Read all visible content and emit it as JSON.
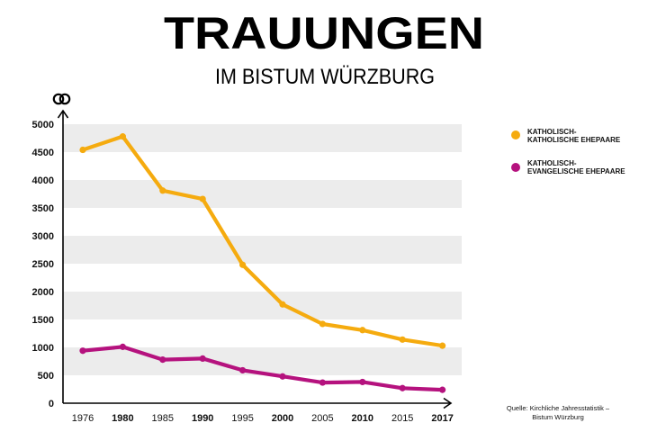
{
  "chart_data": {
    "type": "line",
    "title": "TRAUUNGEN",
    "subtitle": "IM BISTUM WÜRZBURG",
    "x": [
      "1976",
      "1980",
      "1985",
      "1990",
      "1995",
      "2000",
      "2005",
      "2010",
      "2015",
      "2017"
    ],
    "x_bold": [
      "1980",
      "1990",
      "2000",
      "2010",
      "2017"
    ],
    "y_ticks": [
      "0",
      "500",
      "1000",
      "1500",
      "2000",
      "2500",
      "3000",
      "3500",
      "4000",
      "4500",
      "5000"
    ],
    "ylim": [
      0,
      5000
    ],
    "series": [
      {
        "name_line1": "KATHOLISCH-",
        "name_line2": "KATHOLISCHE EHEPAARE",
        "color": "#f5ab0f",
        "values": [
          4540,
          4780,
          3810,
          3660,
          2480,
          1770,
          1420,
          1310,
          1140,
          1030
        ]
      },
      {
        "name_line1": "KATHOLISCH-",
        "name_line2": "EVANGELISCHE EHEPAARE",
        "color": "#b5127e",
        "values": [
          940,
          1010,
          780,
          800,
          590,
          480,
          370,
          380,
          270,
          240
        ]
      }
    ],
    "y_axis_icon": "wedding-rings-icon",
    "source_line1": "Quelle: Kirchliche Jahresstatistik –",
    "source_line2": "Bistum Würzburg",
    "band_color": "#ececec"
  }
}
